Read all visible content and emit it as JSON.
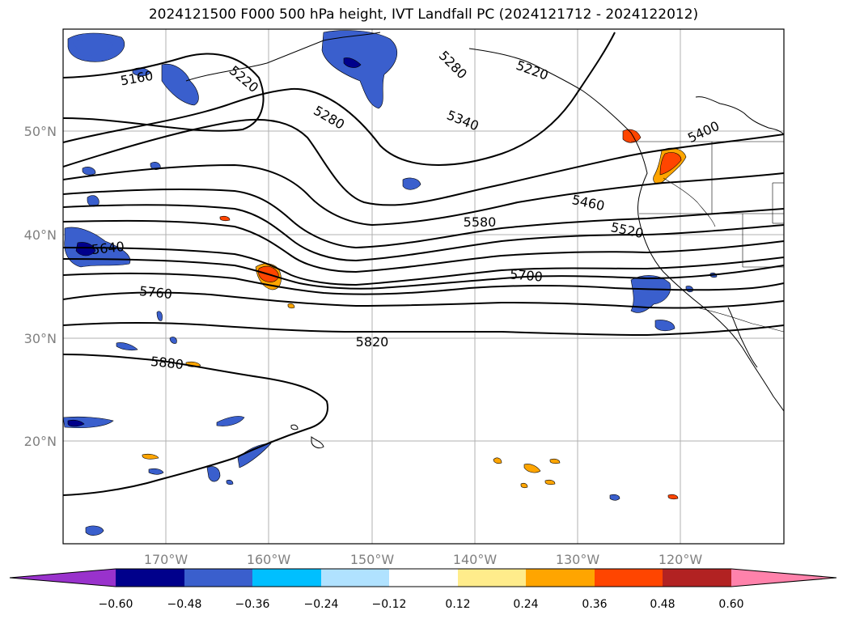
{
  "title": "2024121500 F000 500 hPa height, IVT Landfall PC (2024121712 - 2024122012)",
  "map": {
    "lon_labels": [
      "170°W",
      "160°W",
      "150°W",
      "140°W",
      "130°W",
      "120°W"
    ],
    "lat_labels": [
      "50°N",
      "40°N",
      "30°N",
      "20°N"
    ],
    "contour_labels": [
      "5160",
      "5220",
      "5280",
      "5280",
      "5220",
      "5340",
      "5400",
      "5460",
      "5520",
      "5580",
      "5640",
      "5700",
      "5760",
      "5820",
      "5880"
    ],
    "colors": {
      "neg_strong": "#00008b",
      "neg_mid": "#3a5fcd",
      "neg_light": "#00bfff",
      "pos_light": "#ffa500",
      "pos_strong": "#ff4500"
    }
  },
  "colorbar": {
    "colors": [
      "#9932cc",
      "#00008b",
      "#3a5fcd",
      "#00bfff",
      "#b0e2ff",
      "#ffffff",
      "#ffec8b",
      "#ffa500",
      "#ff4500",
      "#b22222",
      "#ff82ab"
    ],
    "ticks": [
      "−0.60",
      "−0.48",
      "−0.36",
      "−0.24",
      "−0.12",
      "0.12",
      "0.24",
      "0.36",
      "0.48",
      "0.60"
    ]
  }
}
